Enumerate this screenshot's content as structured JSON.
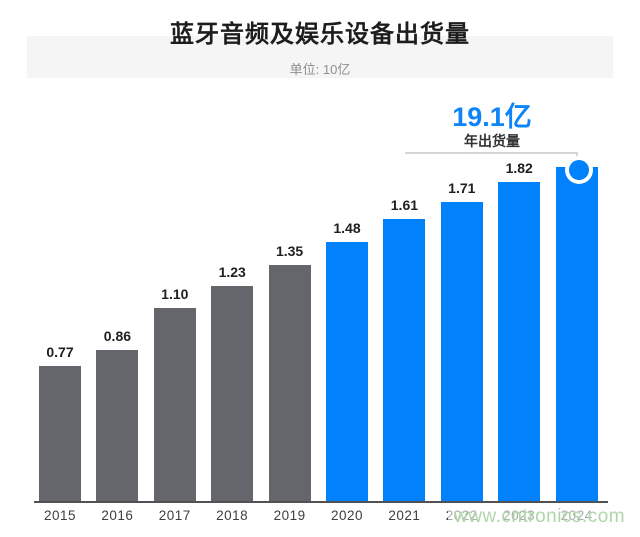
{
  "page": {
    "watermark": "www.cntronics.com",
    "watermark_color": "#aed6a8",
    "background": "#ffffff"
  },
  "header": {
    "title": "蓝牙音频及娱乐设备出货量",
    "subtitle": "单位: 10亿"
  },
  "annotation": {
    "headline": "19.1亿",
    "subline": "年出货量",
    "color": "#0d84f8"
  },
  "chart_data": {
    "type": "bar",
    "title": "蓝牙音频及娱乐设备出货量",
    "unit_label": "单位: 10亿",
    "categories": [
      "2015",
      "2016",
      "2017",
      "2018",
      "2019",
      "2020",
      "2021",
      "2022",
      "2023",
      "2024"
    ],
    "values": [
      0.77,
      0.86,
      1.1,
      1.23,
      1.35,
      1.48,
      1.61,
      1.71,
      1.82,
      1.91
    ],
    "bar_labels": [
      "0.77",
      "0.86",
      "1.10",
      "1.23",
      "1.35",
      "1.48",
      "1.61",
      "1.71",
      "1.82",
      ""
    ],
    "colors": {
      "historical": "#64666b",
      "highlight": "#0181fb"
    },
    "highlight_from_index": 5,
    "marker_on_index": 9,
    "annotation": {
      "text": "19.1亿",
      "sub": "年出货量"
    },
    "xlabel": "",
    "ylabel": "",
    "ylim": [
      0,
      2.0
    ],
    "grid": false,
    "legend": false
  }
}
